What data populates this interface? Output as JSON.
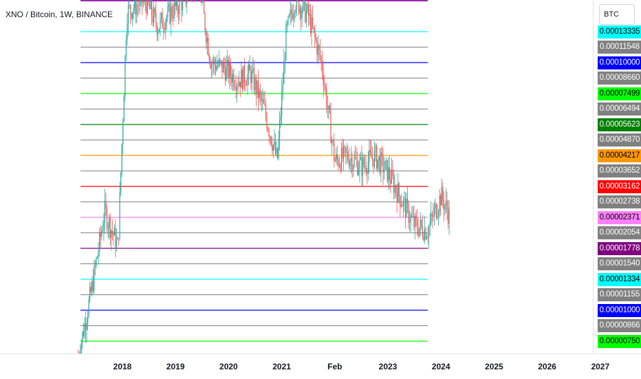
{
  "header": {
    "symbol_title": "XNO / Bitcoin, 1W, BINANCE"
  },
  "price_scale": {
    "currency": "BTC"
  },
  "chart_data": {
    "type": "candlestick",
    "title": "XNO / Bitcoin, 1W, BINANCE",
    "y_scale": "log",
    "x_ticks": [
      "2018",
      "2019",
      "2020",
      "2021",
      "Feb",
      "2023",
      "2024",
      "2025",
      "2026",
      "2027"
    ],
    "levels": [
      {
        "label": "0.00013335",
        "value": 0.00013335,
        "color": "#00ffff",
        "text_color": "#000000"
      },
      {
        "label": "0.00011548",
        "value": 0.00011548,
        "color": "#808080",
        "text_color": "#ffffff"
      },
      {
        "label": "0.00010000",
        "value": 0.0001,
        "color": "#0000ff",
        "text_color": "#ffffff"
      },
      {
        "label": "0.00008660",
        "value": 8.66e-05,
        "color": "#808080",
        "text_color": "#ffffff"
      },
      {
        "label": "0.00007499",
        "value": 7.499e-05,
        "color": "#00ff00",
        "text_color": "#000000"
      },
      {
        "label": "0.00006494",
        "value": 6.494e-05,
        "color": "#808080",
        "text_color": "#ffffff"
      },
      {
        "label": "0.00005623",
        "value": 5.623e-05,
        "color": "#008000",
        "text_color": "#ffffff"
      },
      {
        "label": "0.00004870",
        "value": 4.87e-05,
        "color": "#808080",
        "text_color": "#ffffff"
      },
      {
        "label": "0.00004217",
        "value": 4.217e-05,
        "color": "#ff9800",
        "text_color": "#000000"
      },
      {
        "label": "0.00003652",
        "value": 3.652e-05,
        "color": "#808080",
        "text_color": "#ffffff"
      },
      {
        "label": "0.00003162",
        "value": 3.162e-05,
        "color": "#ff0000",
        "text_color": "#ffffff"
      },
      {
        "label": "0.00002738",
        "value": 2.738e-05,
        "color": "#808080",
        "text_color": "#ffffff"
      },
      {
        "label": "0.00002371",
        "value": 2.371e-05,
        "color": "#ff80ff",
        "text_color": "#000000"
      },
      {
        "label": "0.00002054",
        "value": 2.054e-05,
        "color": "#808080",
        "text_color": "#ffffff"
      },
      {
        "label": "0.00001778",
        "value": 1.778e-05,
        "color": "#800080",
        "text_color": "#ffffff"
      },
      {
        "label": "0.00001540",
        "value": 1.54e-05,
        "color": "#808080",
        "text_color": "#ffffff"
      },
      {
        "label": "0.00001334",
        "value": 1.334e-05,
        "color": "#00ffff",
        "text_color": "#000000"
      },
      {
        "label": "0.00001155",
        "value": 1.155e-05,
        "color": "#808080",
        "text_color": "#ffffff"
      },
      {
        "label": "0.00001000",
        "value": 1e-05,
        "color": "#0000ff",
        "text_color": "#ffffff"
      },
      {
        "label": "0.00000866",
        "value": 8.66e-06,
        "color": "#808080",
        "text_color": "#ffffff"
      },
      {
        "label": "0.00000750",
        "value": 7.5e-06,
        "color": "#00ff00",
        "text_color": "#000000"
      }
    ],
    "price_series": {
      "name": "XNO/BTC",
      "dates": [
        "2017-03",
        "2017-06",
        "2017-09",
        "2017-12",
        "2018-02",
        "2018-06",
        "2018-09",
        "2018-12",
        "2019-03",
        "2019-06",
        "2019-09",
        "2019-12",
        "2020-03",
        "2020-06",
        "2020-09",
        "2020-12",
        "2021-02",
        "2021-04",
        "2021-07",
        "2021-10",
        "2022-01",
        "2022-04",
        "2022-07",
        "2022-10",
        "2023-01",
        "2023-04",
        "2023-07",
        "2023-10",
        "2024-01",
        "2024-03"
      ],
      "close": [
        6.5e-06,
        1.2e-05,
        2.5e-05,
        1.8e-05,
        0.00016,
        0.00018,
        0.00014,
        0.00016,
        0.00018,
        0.00022,
        0.0001,
        9.5e-05,
        8.5e-05,
        9e-05,
        6.5e-05,
        4e-05,
        0.00013,
        0.00018,
        0.000155,
        0.0001,
        4e-05,
        4.2e-05,
        3.8e-05,
        4.2e-05,
        3.6e-05,
        2.8e-05,
        2.2e-05,
        2.1e-05,
        2.9e-05,
        2.4e-05
      ]
    },
    "up_color": "#26a69a",
    "down_color": "#ef5350"
  }
}
